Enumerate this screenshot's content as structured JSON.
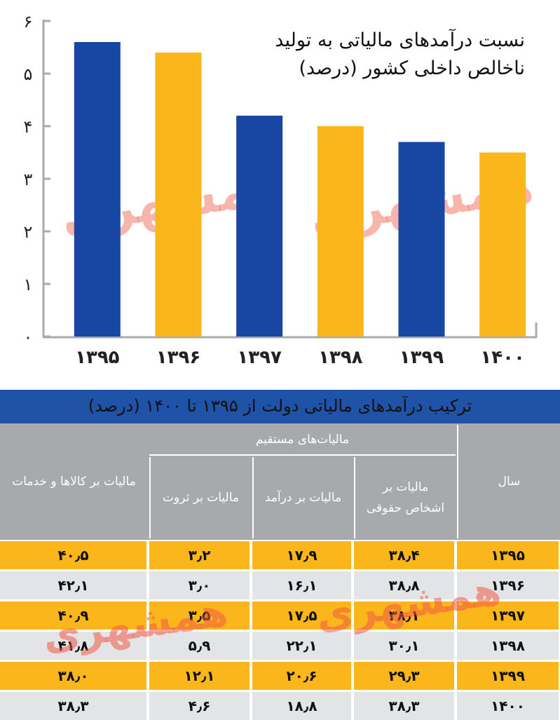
{
  "chart_data": {
    "type": "bar",
    "title": "نسبت درآمدهای مالیاتی به تولید ناخالص داخلی کشور (درصد)",
    "categories": [
      "۱۳۹۵",
      "۱۳۹۶",
      "۱۳۹۷",
      "۱۳۹۸",
      "۱۳۹۹",
      "۱۴۰۰"
    ],
    "values": [
      5.6,
      5.4,
      4.2,
      4.0,
      3.7,
      3.5
    ],
    "colors": [
      "#1747a3",
      "#fbb61b",
      "#1747a3",
      "#fbb61b",
      "#1747a3",
      "#fbb61b"
    ],
    "ylim": [
      0,
      6
    ],
    "yticks": [
      {
        "value": 0,
        "label": "۰"
      },
      {
        "value": 1,
        "label": "۱"
      },
      {
        "value": 2,
        "label": "۲"
      },
      {
        "value": 3,
        "label": "۳"
      },
      {
        "value": 4,
        "label": "۴"
      },
      {
        "value": 5,
        "label": "۵"
      },
      {
        "value": 6,
        "label": "۶"
      }
    ],
    "watermark": "همشهری"
  },
  "table": {
    "title": "ترکیب درآمدهای مالیاتی دولت از ۱۳۹۵ تا ۱۴۰۰ (درصد)",
    "header_group": "مالیات‌های مستقیم",
    "columns": [
      "سال",
      "مالیات بر اشخاص حقوقی",
      "مالیات بر درآمد",
      "مالیات بر ثروت",
      "مالیات بر کالاها و خدمات"
    ],
    "rows": [
      [
        "۱۳۹۵",
        "۳۸٫۴",
        "۱۷٫۹",
        "۳٫۲",
        "۴۰٫۵"
      ],
      [
        "۱۳۹۶",
        "۳۸٫۸",
        "۱۶٫۱",
        "۳٫۰",
        "۴۲٫۱"
      ],
      [
        "۱۳۹۷",
        "۳۸٫۱",
        "۱۷٫۵",
        "۳٫۵",
        "۴۰٫۹"
      ],
      [
        "۱۳۹۸",
        "۳۰٫۱",
        "۲۲٫۱",
        "۵٫۹",
        "۴۱٫۸"
      ],
      [
        "۱۳۹۹",
        "۲۹٫۳",
        "۲۰٫۶",
        "۱۲٫۱",
        "۳۸٫۰"
      ],
      [
        "۱۴۰۰",
        "۳۸٫۳",
        "۱۸٫۸",
        "۴٫۶",
        "۳۸٫۳"
      ]
    ],
    "watermark": "همشهری"
  }
}
